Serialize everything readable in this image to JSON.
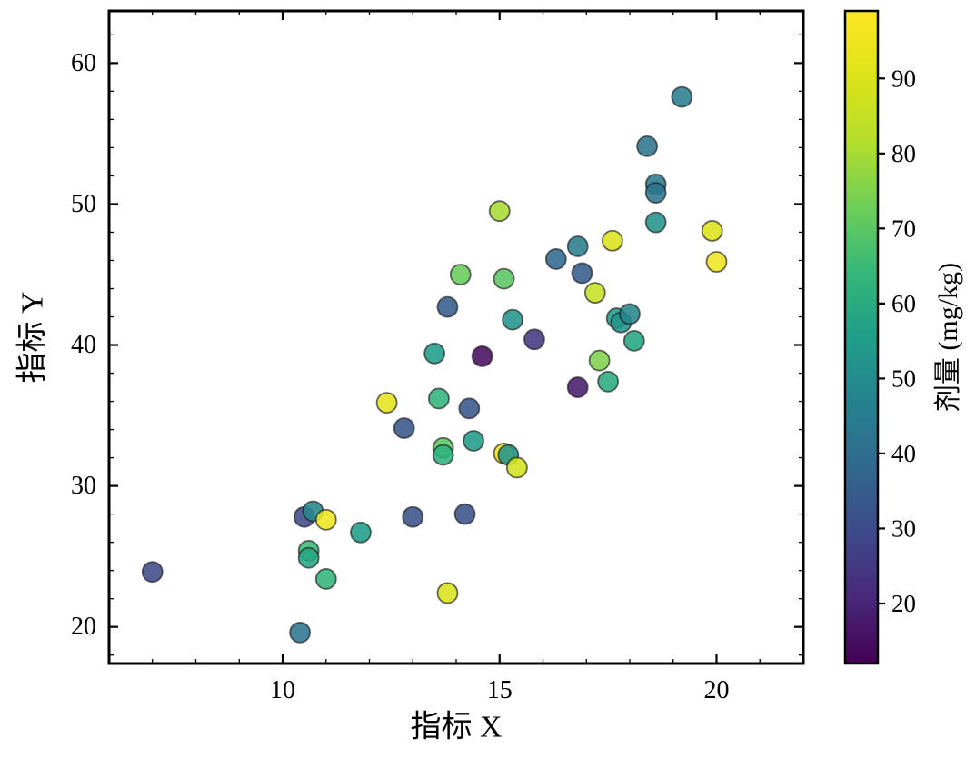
{
  "figure": {
    "background": "#ffffff",
    "spine_color": "#000000",
    "marker_edge_color": "#1a1a1a"
  },
  "chart_data": {
    "type": "scatter",
    "title": "",
    "xlabel": "指标 X",
    "ylabel": "指标 Y",
    "colorbar_label": "剂量 (mg/kg)",
    "xlim": [
      6.0,
      22.0
    ],
    "ylim": [
      17.4,
      63.7
    ],
    "xticks": [
      10,
      15,
      20
    ],
    "yticks": [
      20,
      30,
      40,
      50,
      60
    ],
    "x_minor_step": 1,
    "y_minor_step": 2,
    "colorbar_ticks": [
      20,
      30,
      40,
      50,
      60,
      70,
      80,
      90
    ],
    "color_range": [
      12,
      99
    ],
    "colormap": "viridis",
    "grid": false,
    "legend": "none",
    "points": [
      [
        7.0,
        23.9,
        30
      ],
      [
        10.4,
        19.6,
        42
      ],
      [
        10.5,
        27.8,
        30
      ],
      [
        10.7,
        28.2,
        48
      ],
      [
        10.6,
        25.4,
        65
      ],
      [
        10.6,
        24.9,
        58
      ],
      [
        11.0,
        27.6,
        95
      ],
      [
        11.0,
        23.4,
        63
      ],
      [
        11.8,
        26.7,
        55
      ],
      [
        12.4,
        35.9,
        92
      ],
      [
        12.8,
        34.1,
        33
      ],
      [
        13.0,
        27.8,
        32
      ],
      [
        13.8,
        22.4,
        90
      ],
      [
        13.7,
        32.7,
        70
      ],
      [
        13.7,
        32.2,
        62
      ],
      [
        13.6,
        36.2,
        63
      ],
      [
        13.5,
        39.4,
        55
      ],
      [
        13.8,
        42.7,
        35
      ],
      [
        14.2,
        28.0,
        32
      ],
      [
        14.3,
        35.5,
        33
      ],
      [
        14.1,
        45.0,
        72
      ],
      [
        14.4,
        33.2,
        55
      ],
      [
        14.6,
        39.2,
        15
      ],
      [
        15.0,
        49.5,
        80
      ],
      [
        15.1,
        44.7,
        70
      ],
      [
        15.1,
        32.3,
        93
      ],
      [
        15.2,
        32.2,
        52
      ],
      [
        15.4,
        31.3,
        88
      ],
      [
        15.3,
        41.8,
        52
      ],
      [
        15.8,
        40.4,
        25
      ],
      [
        16.3,
        46.1,
        38
      ],
      [
        16.8,
        47.0,
        45
      ],
      [
        16.9,
        45.1,
        35
      ],
      [
        16.8,
        37.0,
        18
      ],
      [
        17.2,
        43.7,
        85
      ],
      [
        17.3,
        38.9,
        75
      ],
      [
        17.5,
        37.4,
        60
      ],
      [
        17.6,
        47.4,
        90
      ],
      [
        17.7,
        41.9,
        55
      ],
      [
        17.8,
        41.6,
        52
      ],
      [
        18.0,
        42.2,
        48
      ],
      [
        18.1,
        40.3,
        58
      ],
      [
        18.4,
        54.1,
        42
      ],
      [
        18.6,
        51.4,
        43
      ],
      [
        18.6,
        50.8,
        42
      ],
      [
        18.6,
        48.7,
        52
      ],
      [
        19.2,
        57.6,
        45
      ],
      [
        19.9,
        48.1,
        90
      ],
      [
        20.0,
        45.9,
        95
      ]
    ]
  }
}
